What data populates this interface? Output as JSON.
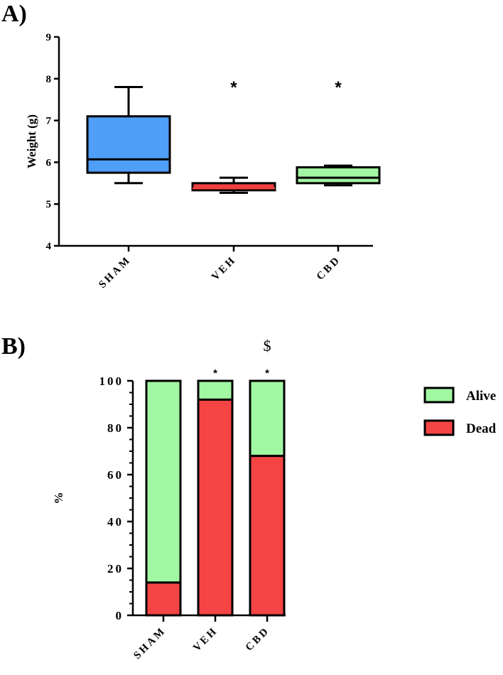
{
  "panels": {
    "a_label": "A)",
    "b_label": "B)"
  },
  "chart_data": [
    {
      "type": "box",
      "panel": "A)",
      "ylabel": "Weight (g)",
      "ylim": [
        4,
        9
      ],
      "yticks": [
        "4",
        "5",
        "6",
        "7",
        "8",
        "9"
      ],
      "categories": [
        "SHAM",
        "VEH",
        "CBD"
      ],
      "boxes": [
        {
          "category": "SHAM",
          "min": 5.5,
          "q1": 5.75,
          "median": 6.07,
          "q3": 7.1,
          "max": 7.8,
          "color": "#4f9ef8",
          "median_color": "#000000"
        },
        {
          "category": "VEH",
          "min": 5.27,
          "q1": 5.33,
          "median": 5.38,
          "q3": 5.5,
          "max": 5.63,
          "color": "#ee4040",
          "median_color": "#ee4040"
        },
        {
          "category": "CBD",
          "min": 5.45,
          "q1": 5.5,
          "median": 5.63,
          "q3": 5.88,
          "max": 5.92,
          "color": "#a2f5a2",
          "median_color": "#000000"
        }
      ],
      "annotations": [
        {
          "category": "VEH",
          "text": "*",
          "y": 7.93
        },
        {
          "category": "CBD",
          "text": "*",
          "y": 7.93
        }
      ],
      "grid": false
    },
    {
      "type": "bar",
      "stacked": true,
      "panel": "B)",
      "ylabel": "%",
      "ylim": [
        0,
        100
      ],
      "yticks": [
        "0",
        "20",
        "40",
        "60",
        "80",
        "100"
      ],
      "categories": [
        "SHAM",
        "VEH",
        "CBD"
      ],
      "series": [
        {
          "name": "Dead",
          "values": [
            14,
            92,
            68
          ],
          "color": "#f44444"
        },
        {
          "name": "Alive",
          "values": [
            86,
            8,
            32
          ],
          "color": "#a2f7a2"
        }
      ],
      "legend_order": [
        "Alive",
        "Dead"
      ],
      "legend_position": "right",
      "annotations": [
        {
          "category": "VEH",
          "text": "*",
          "kind": "small"
        },
        {
          "category": "CBD",
          "text": "*",
          "kind": "small"
        },
        {
          "category": "CBD",
          "text": "$",
          "kind": "dollar"
        }
      ],
      "grid": false
    }
  ]
}
